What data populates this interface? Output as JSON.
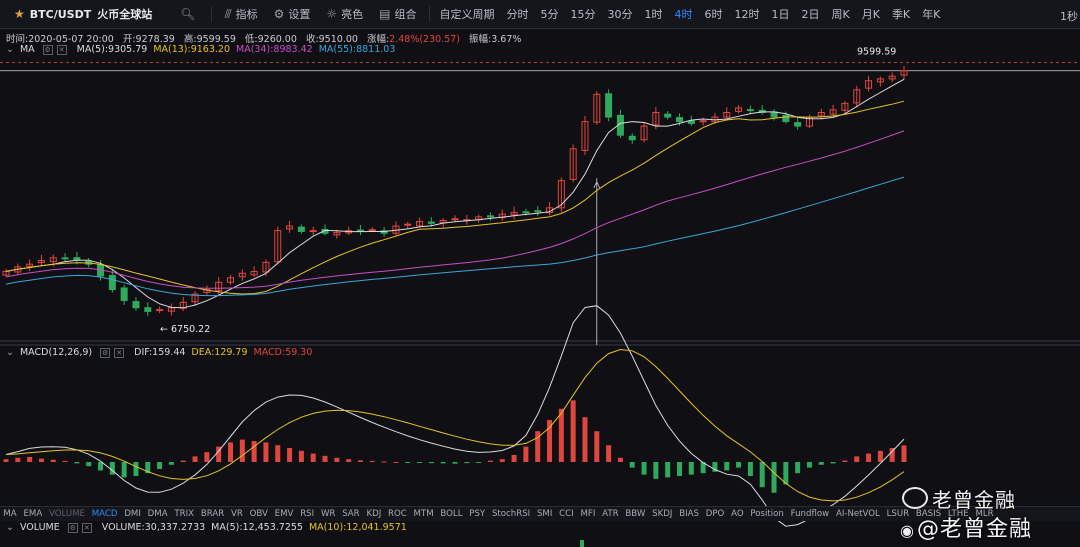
{
  "toolbar": {
    "symbol": "BTC/USDT",
    "exchange": "火币全球站",
    "buttons": [
      {
        "label": "指标",
        "icon": "indicator-icon"
      },
      {
        "label": "设置",
        "icon": "gear-icon"
      },
      {
        "label": "亮色",
        "icon": "sun-icon"
      },
      {
        "label": "组合",
        "icon": "layout-icon"
      }
    ],
    "custom_period": "自定义周期",
    "intervals": [
      "分时",
      "5分",
      "15分",
      "30分",
      "1时",
      "4时",
      "6时",
      "12时",
      "1日",
      "2日",
      "周K",
      "月K",
      "季K",
      "年K"
    ],
    "active_interval": "4时",
    "right_label": "1秒"
  },
  "ohlc": {
    "time": "时间:2020-05-07 20:00",
    "open": "开:9278.39",
    "high": "高:9599.59",
    "low": "低:9260.00",
    "close": "收:9510.00",
    "change_label": "涨幅:",
    "change_value": "2.48%(230.57)",
    "amplitude": "振幅:3.67%"
  },
  "ma_row": {
    "name": "MA",
    "ma5": "MA(5):9305.79",
    "ma13": "MA(13):9163.20",
    "ma34": "MA(34):8983.42",
    "ma55": "MA(55):8811.03"
  },
  "price_labels": {
    "high_marker": "9599.59",
    "low_marker": "← 6750.22"
  },
  "macd_row": {
    "name": "MACD(12,26,9)",
    "dif": "DIF:159.44",
    "dea": "DEA:129.79",
    "macd": "MACD:59.30"
  },
  "volume_row": {
    "name": "VOLUME",
    "volume": "VOLUME:30,337.2733",
    "ma5": "MA(5):12,453.7255",
    "ma10": "MA(10):12,041.9571"
  },
  "indicator_tabs": [
    "MA",
    "EMA",
    "VOLUME",
    "MACD",
    "DMI",
    "DMA",
    "TRIX",
    "BRAR",
    "VR",
    "OBV",
    "EMV",
    "RSI",
    "WR",
    "SAR",
    "KDJ",
    "ROC",
    "MTM",
    "BOLL",
    "PSY",
    "StochRSI",
    "SMI",
    "CCI",
    "MFI",
    "ATR",
    "BBW",
    "SKDJ",
    "BIAS",
    "DPO",
    "AO",
    "Position",
    "Fundflow",
    "AI-NetVOL",
    "LSUR",
    "BASIS",
    "LTHE",
    "MLR"
  ],
  "active_tab": "MACD",
  "dim_tab": "VOLUME",
  "watermark": {
    "line1": "老曾金融",
    "line2": "@老曾金融"
  },
  "colors": {
    "up": "#e0463e",
    "down": "#2faa5c",
    "ma5": "#d8dbe0",
    "ma13": "#e6c229",
    "ma34": "#c74fc4",
    "ma55": "#3aa6d8",
    "accent": "#2f8bff"
  },
  "chart_data": {
    "type": "candlestick",
    "symbol": "BTC/USDT",
    "interval": "4h",
    "price_high": 9599.59,
    "price_low": 6750.22,
    "last_close": 9510.0,
    "close_approx": [
      7300,
      7350,
      7380,
      7420,
      7450,
      7440,
      7430,
      7380,
      7250,
      7100,
      6980,
      6900,
      6860,
      6880,
      6900,
      6960,
      7050,
      7100,
      7180,
      7230,
      7280,
      7300,
      7400,
      7750,
      7800,
      7740,
      7750,
      7720,
      7730,
      7750,
      7740,
      7760,
      7720,
      7800,
      7820,
      7850,
      7830,
      7860,
      7880,
      7870,
      7900,
      7910,
      7930,
      7950,
      7950,
      7960,
      8000,
      8300,
      8650,
      8950,
      9250,
      9000,
      8800,
      8750,
      8900,
      9050,
      9000,
      8950,
      8930,
      8960,
      9000,
      9050,
      9100,
      9080,
      9050,
      9000,
      8950,
      8900,
      9000,
      9050,
      9080,
      9150,
      9300,
      9400,
      9420,
      9450,
      9510
    ],
    "macd": {
      "dif_last": 159.44,
      "dea_last": 129.79,
      "macd_last": 59.3,
      "hist_approx": [
        10,
        15,
        18,
        12,
        8,
        4,
        -5,
        -15,
        -30,
        -45,
        -55,
        -50,
        -40,
        -25,
        -10,
        5,
        20,
        35,
        55,
        70,
        80,
        75,
        70,
        60,
        50,
        40,
        30,
        22,
        15,
        10,
        6,
        4,
        2,
        0,
        -2,
        -3,
        -4,
        -5,
        -6,
        -4,
        -2,
        5,
        10,
        25,
        55,
        110,
        150,
        190,
        220,
        160,
        110,
        60,
        15,
        -20,
        -45,
        -60,
        -55,
        -50,
        -45,
        -40,
        -35,
        -30,
        -20,
        -50,
        -90,
        -110,
        -80,
        -40,
        -20,
        -10,
        -5,
        5,
        20,
        30,
        40,
        50,
        59.3
      ]
    }
  }
}
